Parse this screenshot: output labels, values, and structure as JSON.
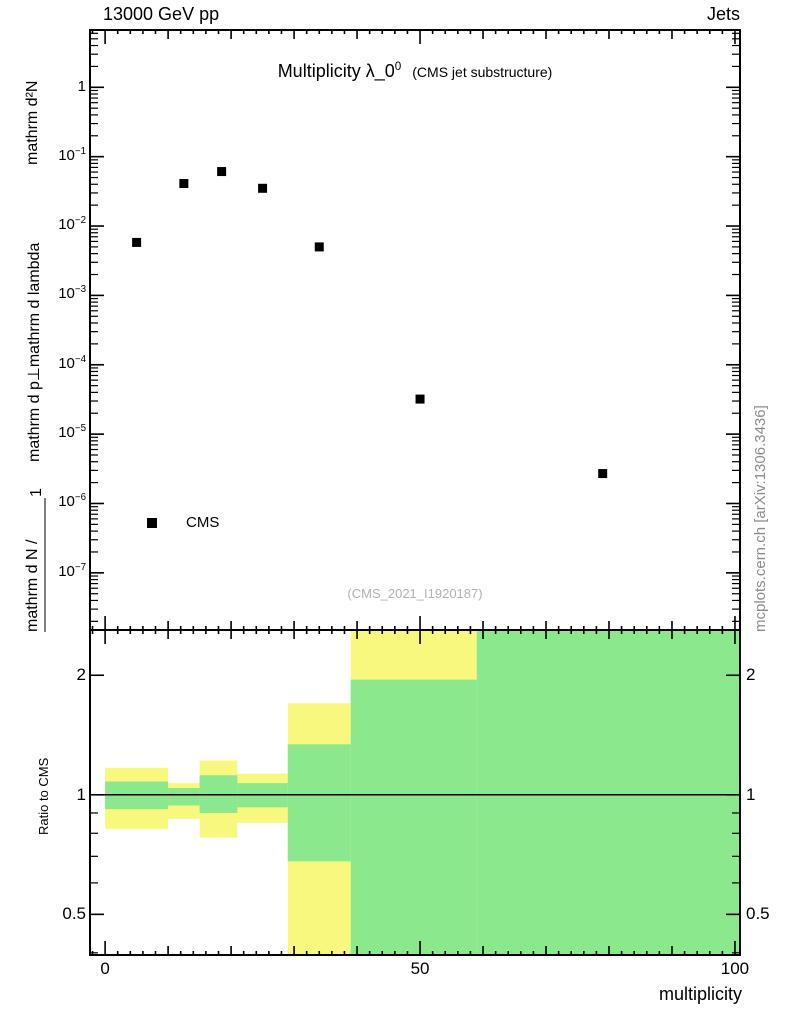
{
  "header": {
    "left": "13000 GeV pp",
    "right": "Jets"
  },
  "main_plot": {
    "title": "Multiplicity λ_0",
    "title_exponent": "0",
    "title_suffix": "(CMS jet substructure)",
    "legend_label": "CMS",
    "watermark": "(CMS_2021_I1920187)",
    "ylabel_parts": {
      "numerator": "mathrm d²N",
      "denominator": "mathrm d p⊥mathrm d lambda",
      "one": "1",
      "dn": "mathrm d N /"
    }
  },
  "ratio_plot": {
    "ylabel": "Ratio to CMS"
  },
  "xaxis": {
    "label": "multiplicity"
  },
  "credit": "mcplots.cern.ch [arXiv:1306.3436]",
  "colors": {
    "band_outer": "#f8f87e",
    "band_inner": "#8ce88c",
    "marker": "#000000",
    "watermark": "#b2b2b2",
    "credit": "#8c8c8c"
  },
  "chart_data": [
    {
      "id": "main",
      "type": "scatter",
      "title": "Multiplicity λ_0^0 (CMS jet substructure)",
      "xlabel": "multiplicity",
      "ylabel": "1/dN d²N / (dp⊥ dλ)",
      "yscale": "log",
      "xlim": [
        -2.4,
        100.8
      ],
      "ylim": [
        1.5e-08,
        6.7
      ],
      "ytick_exponents": [
        0,
        -1,
        -2,
        -3,
        -4,
        -5,
        -6,
        -7
      ],
      "xticks_major": [
        0,
        50,
        100
      ],
      "xtick_medium_step": 10,
      "xtick_minor_step": 2,
      "legend": [
        "CMS"
      ],
      "points_x": [
        5,
        12.5,
        18.5,
        25,
        34,
        50,
        79
      ],
      "points_y": [
        0.0058,
        0.041,
        0.061,
        0.035,
        0.005,
        3.2e-05,
        2.7e-06
      ]
    },
    {
      "id": "ratio",
      "type": "band-ratio",
      "ylabel": "Ratio to CMS",
      "yscale": "log",
      "xlim": [
        -2.4,
        100.8
      ],
      "ylim": [
        0.395,
        2.6
      ],
      "yticks_labeled": [
        0.5,
        1,
        2
      ],
      "yticks_minor": [
        0.4,
        0.6,
        0.7,
        0.8,
        0.9
      ],
      "xticks_major": [
        0,
        50,
        100
      ],
      "xtick_medium_step": 10,
      "xtick_minor_step": 2,
      "reference_line": 1,
      "bands": [
        {
          "x0": 0,
          "x1": 10,
          "outer": [
            0.82,
            1.17
          ],
          "inner": [
            0.92,
            1.08
          ]
        },
        {
          "x0": 10,
          "x1": 15,
          "outer": [
            0.87,
            1.07
          ],
          "inner": [
            0.94,
            1.04
          ]
        },
        {
          "x0": 15,
          "x1": 21,
          "outer": [
            0.78,
            1.22
          ],
          "inner": [
            0.9,
            1.12
          ]
        },
        {
          "x0": 21,
          "x1": 29,
          "outer": [
            0.85,
            1.13
          ],
          "inner": [
            0.93,
            1.07
          ]
        },
        {
          "x0": 29,
          "x1": 39,
          "outer": [
            0.37,
            1.7
          ],
          "inner": [
            0.68,
            1.34
          ]
        },
        {
          "x0": 39,
          "x1": 59,
          "outer": [
            0.37,
            2.7
          ],
          "inner": [
            0.37,
            1.95
          ]
        },
        {
          "x0": 59,
          "x1": 100.8,
          "outer": [
            0.37,
            2.7
          ],
          "inner": [
            0.37,
            2.7
          ]
        }
      ]
    }
  ]
}
